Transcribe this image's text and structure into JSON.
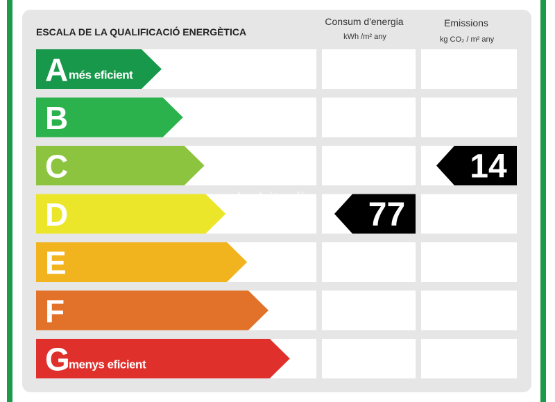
{
  "title": "ESCALA DE LA QUALIFICACIÓ ENERGÈTICA",
  "columns": {
    "consum": {
      "title": "Consum d'energia",
      "unit": "kWh /m² any"
    },
    "emissions": {
      "title": "Emissions",
      "unit": "kg CO₂ / m² any"
    }
  },
  "rows": [
    {
      "letter": "A",
      "label": "més eficient",
      "color": "#17984a",
      "consum": null,
      "emissions": null
    },
    {
      "letter": "B",
      "label": null,
      "color": "#2bb24c",
      "consum": null,
      "emissions": null
    },
    {
      "letter": "C",
      "label": null,
      "color": "#8cc43f",
      "consum": null,
      "emissions": 14
    },
    {
      "letter": "D",
      "label": null,
      "color": "#ece62a",
      "consum": 77,
      "emissions": null
    },
    {
      "letter": "E",
      "label": null,
      "color": "#f1b41f",
      "consum": null,
      "emissions": null
    },
    {
      "letter": "F",
      "label": null,
      "color": "#e2722a",
      "consum": null,
      "emissions": null
    },
    {
      "letter": "G",
      "label": "menys eficient",
      "color": "#df302c",
      "consum": null,
      "emissions": null
    }
  ],
  "watermark": "habitadia"
}
